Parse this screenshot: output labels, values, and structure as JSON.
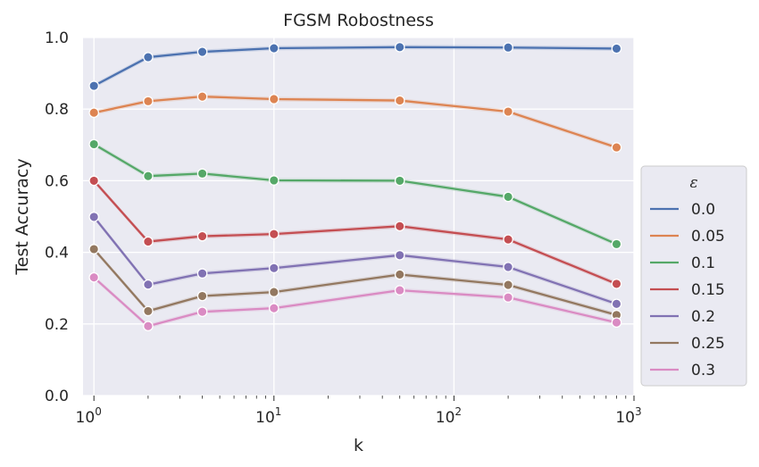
{
  "chart_data": {
    "type": "line",
    "title": "FGSM Robostness",
    "xlabel": "k",
    "ylabel": "Test Accuracy",
    "x_scale": "log",
    "xlim": [
      0.87,
      1000
    ],
    "ylim": [
      0,
      1.0
    ],
    "grid": true,
    "x_ticks": [
      {
        "base": "10",
        "exp": "0",
        "value": 1
      },
      {
        "base": "10",
        "exp": "1",
        "value": 10
      },
      {
        "base": "10",
        "exp": "2",
        "value": 100
      },
      {
        "base": "10",
        "exp": "3",
        "value": 1000
      }
    ],
    "y_ticks": [
      "0.0",
      "0.2",
      "0.4",
      "0.6",
      "0.8",
      "1.0"
    ],
    "legend": {
      "title": "ε",
      "placement": "center-right, outside plot"
    },
    "x": [
      1,
      2,
      4,
      10,
      50,
      200,
      800
    ],
    "series": [
      {
        "name": "0.0",
        "color": "#4c72b0",
        "values": [
          0.865,
          0.945,
          0.96,
          0.97,
          0.973,
          0.972,
          0.969
        ]
      },
      {
        "name": "0.05",
        "color": "#dd8452",
        "values": [
          0.79,
          0.822,
          0.835,
          0.828,
          0.824,
          0.793,
          0.693
        ]
      },
      {
        "name": "0.1",
        "color": "#55a868",
        "values": [
          0.702,
          0.613,
          0.62,
          0.601,
          0.6,
          0.555,
          0.423
        ]
      },
      {
        "name": "0.15",
        "color": "#c44e52",
        "values": [
          0.6,
          0.43,
          0.445,
          0.451,
          0.473,
          0.436,
          0.312
        ]
      },
      {
        "name": "0.2",
        "color": "#8172b3",
        "values": [
          0.499,
          0.31,
          0.341,
          0.356,
          0.392,
          0.359,
          0.256
        ]
      },
      {
        "name": "0.25",
        "color": "#937860",
        "values": [
          0.409,
          0.236,
          0.278,
          0.289,
          0.338,
          0.309,
          0.225
        ]
      },
      {
        "name": "0.3",
        "color": "#da8bc3",
        "values": [
          0.33,
          0.194,
          0.234,
          0.244,
          0.294,
          0.274,
          0.204
        ]
      }
    ]
  }
}
